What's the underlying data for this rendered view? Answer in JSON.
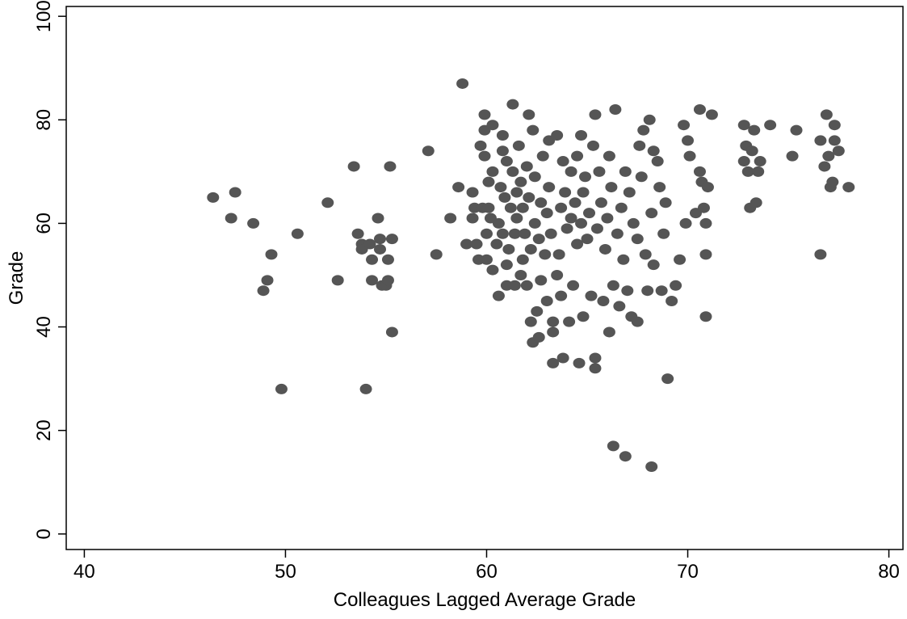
{
  "chart_data": {
    "type": "scatter",
    "xlabel": "Colleagues Lagged Average Grade",
    "ylabel": "Grade",
    "color": "#555555",
    "xlim": [
      39.1,
      80.7
    ],
    "ylim": [
      -3,
      101.9
    ],
    "xticks": [
      40,
      50,
      60,
      70,
      80
    ],
    "yticks": [
      0,
      20,
      40,
      60,
      80,
      100
    ],
    "x": [
      46.4,
      47.3,
      47.5,
      48.4,
      48.9,
      49.1,
      49.3,
      49.8,
      50.6,
      52.1,
      52.6,
      53.4,
      53.6,
      53.8,
      53.8,
      54.0,
      54.2,
      54.3,
      54.3,
      54.6,
      54.7,
      54.7,
      54.8,
      55.0,
      55.1,
      55.1,
      55.2,
      55.3,
      55.3,
      57.1,
      57.5,
      58.2,
      58.6,
      58.8,
      59.0,
      59.3,
      59.3,
      59.4,
      59.5,
      59.6,
      59.7,
      59.8,
      59.9,
      59.9,
      59.9,
      60.0,
      60.0,
      60.1,
      60.1,
      60.2,
      60.3,
      60.3,
      60.3,
      60.5,
      60.6,
      60.6,
      60.7,
      60.8,
      60.8,
      60.8,
      60.9,
      61.0,
      61.0,
      61.0,
      61.1,
      61.2,
      61.3,
      61.3,
      61.4,
      61.4,
      61.5,
      61.5,
      61.6,
      61.7,
      61.7,
      61.8,
      61.8,
      61.9,
      62.0,
      62.0,
      62.1,
      62.1,
      62.2,
      62.2,
      62.3,
      62.3,
      62.4,
      62.4,
      62.5,
      62.6,
      62.6,
      62.7,
      62.7,
      62.8,
      62.9,
      63.0,
      63.0,
      63.1,
      63.1,
      63.2,
      63.3,
      63.3,
      63.3,
      63.5,
      63.5,
      63.6,
      63.7,
      63.7,
      63.8,
      63.8,
      63.9,
      64.0,
      64.1,
      64.2,
      64.2,
      64.3,
      64.4,
      64.5,
      64.5,
      64.6,
      64.7,
      64.7,
      64.8,
      64.8,
      64.9,
      65.0,
      65.1,
      65.2,
      65.3,
      65.4,
      65.4,
      65.4,
      65.5,
      65.6,
      65.7,
      65.8,
      65.9,
      66.0,
      66.1,
      66.1,
      66.2,
      66.3,
      66.3,
      66.4,
      66.5,
      66.6,
      66.7,
      66.8,
      66.9,
      66.9,
      67.0,
      67.1,
      67.2,
      67.3,
      67.5,
      67.5,
      67.6,
      67.7,
      67.8,
      67.9,
      68.0,
      68.1,
      68.2,
      68.2,
      68.3,
      68.3,
      68.5,
      68.6,
      68.7,
      68.8,
      68.9,
      69.0,
      69.2,
      69.4,
      69.6,
      69.8,
      69.9,
      70.1,
      70.0,
      70.4,
      70.6,
      70.6,
      70.7,
      70.8,
      70.9,
      70.9,
      70.9,
      71.0,
      71.2,
      72.8,
      72.8,
      72.9,
      73.0,
      73.1,
      73.2,
      73.3,
      73.4,
      73.5,
      73.6,
      74.1,
      75.2,
      75.4,
      76.6,
      76.6,
      76.8,
      76.9,
      77.0,
      77.1,
      77.2,
      77.3,
      77.3,
      77.5,
      78.0
    ],
    "values": [
      65,
      61,
      66,
      60,
      47,
      49,
      54,
      28,
      58,
      64,
      49,
      71,
      58,
      56,
      55,
      28,
      56,
      53,
      49,
      61,
      57,
      55,
      48,
      48,
      53,
      49,
      71,
      57,
      39,
      74,
      54,
      61,
      67,
      87,
      56,
      61,
      66,
      63,
      56,
      53,
      75,
      63,
      81,
      78,
      73,
      58,
      53,
      63,
      68,
      61,
      70,
      79,
      51,
      56,
      46,
      60,
      67,
      58,
      74,
      77,
      65,
      52,
      48,
      72,
      55,
      63,
      83,
      70,
      58,
      48,
      61,
      66,
      75,
      68,
      50,
      53,
      63,
      58,
      48,
      71,
      81,
      65,
      41,
      55,
      78,
      37,
      60,
      69,
      43,
      38,
      57,
      49,
      64,
      73,
      54,
      62,
      45,
      76,
      67,
      58,
      33,
      41,
      39,
      50,
      77,
      54,
      63,
      46,
      34,
      72,
      66,
      59,
      41,
      70,
      61,
      48,
      64,
      56,
      73,
      33,
      77,
      60,
      42,
      66,
      69,
      57,
      62,
      46,
      75,
      34,
      32,
      81,
      59,
      70,
      64,
      45,
      55,
      61,
      39,
      73,
      67,
      48,
      17,
      82,
      58,
      44,
      63,
      53,
      15,
      70,
      47,
      66,
      42,
      60,
      41,
      57,
      75,
      69,
      78,
      54,
      47,
      80,
      13,
      62,
      74,
      52,
      72,
      67,
      47,
      58,
      64,
      30,
      45,
      48,
      53,
      79,
      60,
      73,
      76,
      62,
      82,
      70,
      68,
      63,
      60,
      54,
      42,
      67,
      81,
      79,
      72,
      75,
      70,
      63,
      74,
      78,
      64,
      70,
      72,
      79,
      73,
      78,
      54,
      76,
      71,
      81,
      73,
      67,
      68,
      76,
      79,
      74,
      67
    ]
  }
}
